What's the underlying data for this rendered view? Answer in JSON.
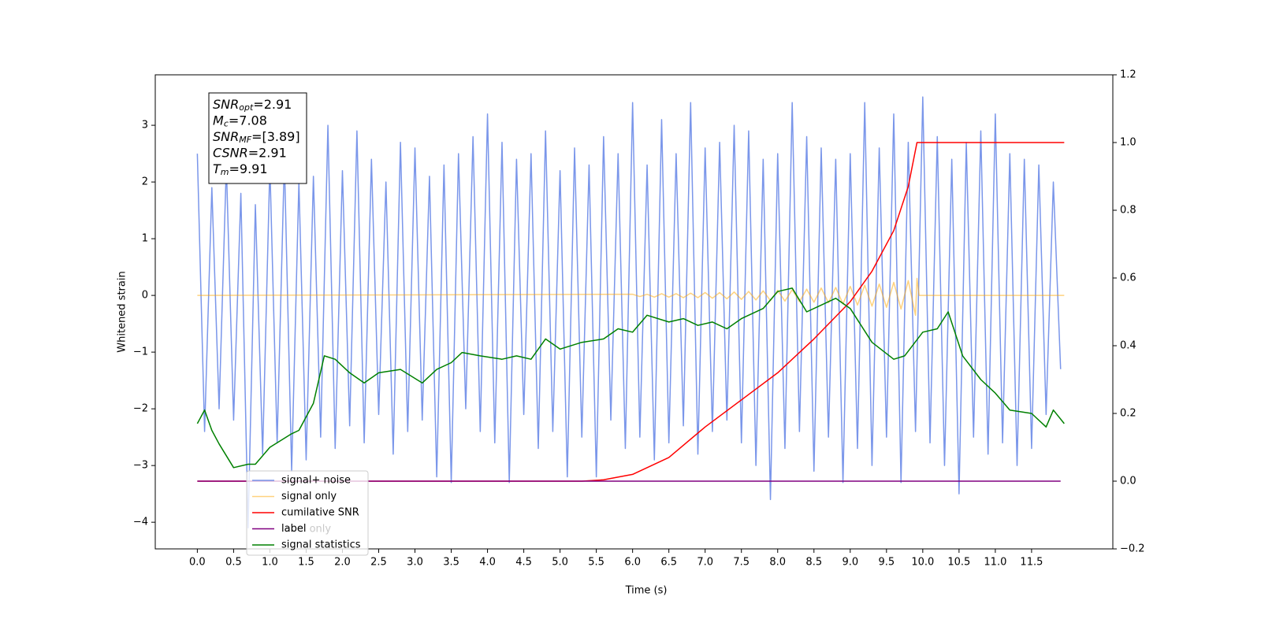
{
  "chart_data": {
    "type": "line",
    "xlabel": "Time (s)",
    "ylabel": "Whitened strain",
    "xlim": [
      -0.58,
      12.62
    ],
    "ylim": [
      -4.47,
      3.89
    ],
    "y2lim": [
      -0.2,
      1.2
    ],
    "xticks": [
      {
        "value": 0,
        "label": "0.0"
      },
      {
        "value": 0.5,
        "label": "0.5"
      },
      {
        "value": 1,
        "label": "1.0"
      },
      {
        "value": 1.5,
        "label": "1.5"
      },
      {
        "value": 2,
        "label": "2.0"
      },
      {
        "value": 2.5,
        "label": "2.5"
      },
      {
        "value": 3,
        "label": "3.0"
      },
      {
        "value": 3.5,
        "label": "3.5"
      },
      {
        "value": 4,
        "label": "4.0"
      },
      {
        "value": 4.5,
        "label": "4.5"
      },
      {
        "value": 5,
        "label": "5.0"
      },
      {
        "value": 5.5,
        "label": "5.5"
      },
      {
        "value": 6,
        "label": "6.0"
      },
      {
        "value": 6.5,
        "label": "6.5"
      },
      {
        "value": 7,
        "label": "7.0"
      },
      {
        "value": 7.5,
        "label": "7.5"
      },
      {
        "value": 8,
        "label": "8.0"
      },
      {
        "value": 8.5,
        "label": "8.5"
      },
      {
        "value": 9,
        "label": "9.0"
      },
      {
        "value": 9.5,
        "label": "9.5"
      },
      {
        "value": 10,
        "label": "10.0"
      },
      {
        "value": 10.5,
        "label": "10.5"
      },
      {
        "value": 11,
        "label": "11.0"
      },
      {
        "value": 11.5,
        "label": "11.5"
      }
    ],
    "yticks": [
      {
        "value": -4,
        "label": "−4"
      },
      {
        "value": -3,
        "label": "−3"
      },
      {
        "value": -2,
        "label": "−2"
      },
      {
        "value": -1,
        "label": "−1"
      },
      0,
      1,
      2,
      3
    ],
    "y2ticks": [
      {
        "value": -0.2,
        "label": "−0.2"
      },
      {
        "value": 0,
        "label": "0.0"
      },
      {
        "value": 0.2,
        "label": "0.2"
      },
      {
        "value": 0.4,
        "label": "0.4"
      },
      {
        "value": 0.6,
        "label": "0.6"
      },
      {
        "value": 0.8,
        "label": "0.8"
      },
      {
        "value": 1,
        "label": "1.0"
      },
      {
        "value": 1.2,
        "label": "1.2"
      }
    ],
    "legend": "lower left",
    "legend_overlay_text": "label only",
    "textbox": [
      {
        "symbol": "SNR",
        "subscript": "opt",
        "text": "=2.91"
      },
      {
        "symbol": "M",
        "subscript": "c",
        "text": "=7.08"
      },
      {
        "symbol": "SNR",
        "subscript": "MF",
        "text": "=[3.89]"
      },
      {
        "symbol": "CSNR",
        "subscript": "",
        "text": "=2.91"
      },
      {
        "symbol": "T",
        "subscript": "m",
        "text": "=9.91"
      }
    ],
    "series": [
      {
        "name": "signal+ noise",
        "color": "#4169e1",
        "alpha": 0.7,
        "x": [
          0,
          0.1,
          0.2,
          0.3,
          0.4,
          0.5,
          0.6,
          0.7,
          0.8,
          0.9,
          1,
          1.1,
          1.2,
          1.3,
          1.4,
          1.5,
          1.6,
          1.7,
          1.8,
          1.9,
          2,
          2.1,
          2.2,
          2.3,
          2.4,
          2.5,
          2.6,
          2.7,
          2.8,
          2.9,
          3,
          3.1,
          3.2,
          3.3,
          3.4,
          3.5,
          3.6,
          3.7,
          3.8,
          3.9,
          4,
          4.1,
          4.2,
          4.3,
          4.4,
          4.5,
          4.6,
          4.7,
          4.8,
          4.9,
          5,
          5.1,
          5.2,
          5.3,
          5.4,
          5.5,
          5.6,
          5.7,
          5.8,
          5.9,
          6,
          6.1,
          6.2,
          6.3,
          6.4,
          6.5,
          6.6,
          6.7,
          6.8,
          6.9,
          7,
          7.1,
          7.2,
          7.3,
          7.4,
          7.5,
          7.6,
          7.7,
          7.8,
          7.9,
          8,
          8.1,
          8.2,
          8.3,
          8.4,
          8.5,
          8.6,
          8.7,
          8.8,
          8.9,
          9,
          9.1,
          9.2,
          9.3,
          9.4,
          9.5,
          9.6,
          9.7,
          9.8,
          9.9,
          10,
          10.1,
          10.2,
          10.3,
          10.4,
          10.5,
          10.6,
          10.7,
          10.8,
          10.9,
          11,
          11.1,
          11.2,
          11.3,
          11.4,
          11.5,
          11.6,
          11.7,
          11.8,
          11.9
        ],
        "values": [
          2.5,
          -2.4,
          1.9,
          -2.0,
          2.3,
          -2.2,
          1.8,
          -4.1,
          1.6,
          -2.8,
          2.3,
          -2.6,
          2.4,
          -3.1,
          2.0,
          -2.9,
          2.1,
          -2.5,
          3.0,
          -2.7,
          2.2,
          -2.3,
          2.9,
          -2.6,
          2.4,
          -2.1,
          2.0,
          -2.8,
          2.7,
          -2.4,
          2.6,
          -2.2,
          2.1,
          -3.2,
          2.3,
          -3.3,
          2.5,
          -2.0,
          2.8,
          -2.4,
          3.2,
          -2.6,
          2.7,
          -3.3,
          2.4,
          -2.1,
          2.5,
          -2.7,
          2.9,
          -2.4,
          2.2,
          -3.2,
          2.6,
          -2.5,
          2.3,
          -3.2,
          2.8,
          -2.2,
          2.5,
          -2.7,
          3.4,
          -2.5,
          2.3,
          -2.9,
          3.1,
          -2.6,
          2.5,
          -2.3,
          3.4,
          -2.8,
          2.6,
          -2.4,
          2.7,
          -2.2,
          3.0,
          -2.6,
          2.9,
          -3.0,
          2.4,
          -3.6,
          2.5,
          -2.7,
          3.4,
          -2.4,
          2.8,
          -3.1,
          2.6,
          -2.5,
          2.4,
          -3.3,
          2.5,
          -2.7,
          3.4,
          -3.0,
          2.6,
          -2.5,
          3.2,
          -3.3,
          2.7,
          -2.4,
          3.5,
          -2.6,
          2.8,
          -3.0,
          2.4,
          -3.5,
          2.7,
          -2.5,
          2.9,
          -2.8,
          3.2,
          -2.6,
          2.5,
          -3.0,
          2.4,
          -2.7,
          2.3,
          -2.1,
          2.0,
          -1.3
        ]
      },
      {
        "name": "signal only",
        "color": "#ffa500",
        "alpha": 0.5,
        "x": [
          0,
          6.0,
          6.1,
          6.2,
          6.3,
          6.4,
          6.5,
          6.6,
          6.7,
          6.8,
          6.9,
          7.0,
          7.1,
          7.2,
          7.3,
          7.4,
          7.5,
          7.6,
          7.7,
          7.8,
          7.9,
          8.0,
          8.1,
          8.2,
          8.3,
          8.4,
          8.5,
          8.6,
          8.7,
          8.8,
          8.9,
          9.0,
          9.1,
          9.2,
          9.3,
          9.4,
          9.5,
          9.6,
          9.7,
          9.8,
          9.9,
          9.92,
          9.95,
          11.95
        ],
        "values": [
          0,
          0.02,
          -0.02,
          0.02,
          -0.03,
          0.03,
          -0.03,
          0.03,
          -0.04,
          0.04,
          -0.04,
          0.05,
          -0.05,
          0.05,
          -0.06,
          0.06,
          -0.07,
          0.07,
          -0.08,
          0.08,
          -0.09,
          0.09,
          -0.1,
          0.1,
          -0.11,
          0.11,
          -0.12,
          0.13,
          -0.13,
          0.14,
          -0.15,
          0.16,
          -0.17,
          0.18,
          -0.19,
          0.2,
          -0.21,
          0.23,
          -0.24,
          0.26,
          -0.35,
          0.3,
          0,
          0
        ]
      },
      {
        "name": "cumilative SNR",
        "color": "#ff0000",
        "axis": "y2",
        "x": [
          0,
          5.3,
          5.6,
          6.0,
          6.5,
          7.0,
          7.5,
          8.0,
          8.5,
          9.0,
          9.3,
          9.6,
          9.8,
          9.92,
          11.95
        ],
        "values": [
          0,
          0,
          0.004,
          0.02,
          0.07,
          0.16,
          0.24,
          0.32,
          0.42,
          0.53,
          0.62,
          0.74,
          0.87,
          1.0,
          1.0
        ]
      },
      {
        "name": "label",
        "color": "#800080",
        "axis": "y2",
        "x": [
          0,
          11.9
        ],
        "values": [
          0,
          0
        ]
      },
      {
        "name": "signal statistics",
        "color": "#008000",
        "axis": "y2",
        "x": [
          0,
          0.1,
          0.2,
          0.3,
          0.5,
          0.7,
          0.8,
          1.0,
          1.3,
          1.4,
          1.6,
          1.75,
          1.9,
          2.1,
          2.3,
          2.5,
          2.8,
          3.1,
          3.3,
          3.5,
          3.65,
          3.9,
          4.2,
          4.4,
          4.6,
          4.8,
          5.0,
          5.3,
          5.6,
          5.8,
          6.0,
          6.2,
          6.5,
          6.7,
          6.9,
          7.1,
          7.3,
          7.5,
          7.8,
          8.0,
          8.2,
          8.4,
          8.6,
          8.8,
          9.0,
          9.3,
          9.6,
          9.75,
          10.0,
          10.2,
          10.35,
          10.55,
          10.8,
          11.0,
          11.2,
          11.5,
          11.7,
          11.8,
          11.95
        ],
        "values": [
          0.17,
          0.21,
          0.15,
          0.11,
          0.04,
          0.05,
          0.05,
          0.1,
          0.14,
          0.15,
          0.23,
          0.37,
          0.36,
          0.32,
          0.29,
          0.32,
          0.33,
          0.29,
          0.33,
          0.35,
          0.38,
          0.37,
          0.36,
          0.37,
          0.36,
          0.42,
          0.39,
          0.41,
          0.42,
          0.45,
          0.44,
          0.49,
          0.47,
          0.48,
          0.46,
          0.47,
          0.45,
          0.48,
          0.51,
          0.56,
          0.57,
          0.5,
          0.52,
          0.54,
          0.51,
          0.41,
          0.36,
          0.37,
          0.44,
          0.45,
          0.5,
          0.37,
          0.3,
          0.26,
          0.21,
          0.2,
          0.16,
          0.21,
          0.17
        ]
      }
    ]
  }
}
